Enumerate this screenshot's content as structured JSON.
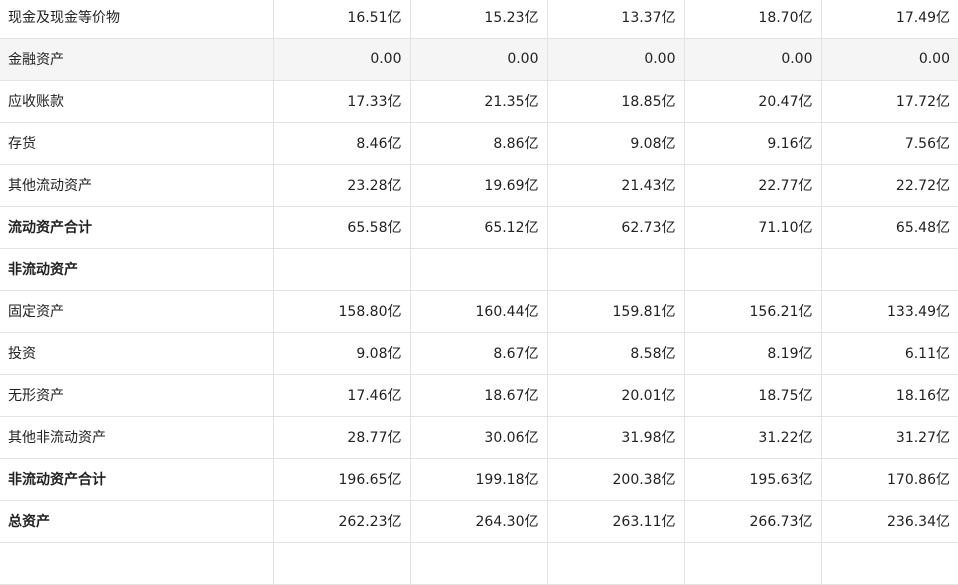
{
  "rows": [
    {
      "label": "现金及现金等价物",
      "values": [
        "16.51亿",
        "15.23亿",
        "13.37亿",
        "18.70亿",
        "17.49亿"
      ],
      "bold": false,
      "shaded": false
    },
    {
      "label": "金融资产",
      "values": [
        "0.00",
        "0.00",
        "0.00",
        "0.00",
        "0.00"
      ],
      "bold": false,
      "shaded": true
    },
    {
      "label": "应收账款",
      "values": [
        "17.33亿",
        "21.35亿",
        "18.85亿",
        "20.47亿",
        "17.72亿"
      ],
      "bold": false,
      "shaded": false
    },
    {
      "label": "存货",
      "values": [
        "8.46亿",
        "8.86亿",
        "9.08亿",
        "9.16亿",
        "7.56亿"
      ],
      "bold": false,
      "shaded": false
    },
    {
      "label": "其他流动资产",
      "values": [
        "23.28亿",
        "19.69亿",
        "21.43亿",
        "22.77亿",
        "22.72亿"
      ],
      "bold": false,
      "shaded": false
    },
    {
      "label": "流动资产合计",
      "values": [
        "65.58亿",
        "65.12亿",
        "62.73亿",
        "71.10亿",
        "65.48亿"
      ],
      "bold": true,
      "shaded": false
    },
    {
      "label": "非流动资产",
      "values": [
        "",
        "",
        "",
        "",
        ""
      ],
      "bold": true,
      "shaded": false
    },
    {
      "label": "固定资产",
      "values": [
        "158.80亿",
        "160.44亿",
        "159.81亿",
        "156.21亿",
        "133.49亿"
      ],
      "bold": false,
      "shaded": false
    },
    {
      "label": "投资",
      "values": [
        "9.08亿",
        "8.67亿",
        "8.58亿",
        "8.19亿",
        "6.11亿"
      ],
      "bold": false,
      "shaded": false
    },
    {
      "label": "无形资产",
      "values": [
        "17.46亿",
        "18.67亿",
        "20.01亿",
        "18.75亿",
        "18.16亿"
      ],
      "bold": false,
      "shaded": false
    },
    {
      "label": "其他非流动资产",
      "values": [
        "28.77亿",
        "30.06亿",
        "31.98亿",
        "31.22亿",
        "31.27亿"
      ],
      "bold": false,
      "shaded": false
    },
    {
      "label": "非流动资产合计",
      "values": [
        "196.65亿",
        "199.18亿",
        "200.38亿",
        "195.63亿",
        "170.86亿"
      ],
      "bold": true,
      "shaded": false
    },
    {
      "label": "总资产",
      "values": [
        "262.23亿",
        "264.30亿",
        "263.11亿",
        "266.73亿",
        "236.34亿"
      ],
      "bold": true,
      "shaded": false
    },
    {
      "label": "",
      "values": [
        "",
        "",
        "",
        "",
        ""
      ],
      "bold": false,
      "shaded": false
    }
  ]
}
